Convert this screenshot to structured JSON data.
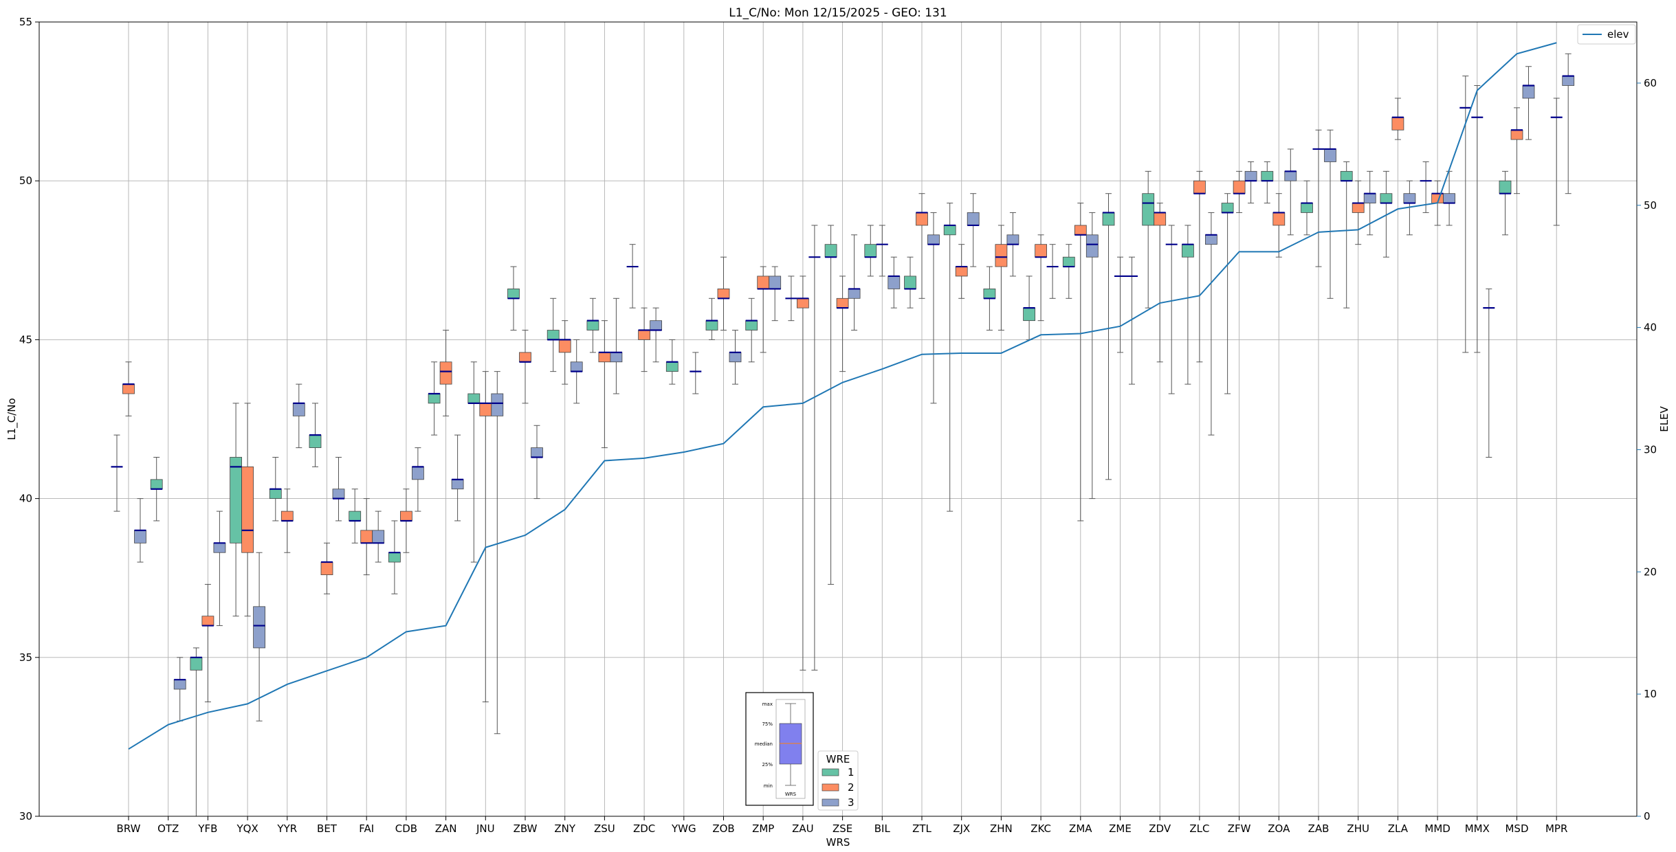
{
  "chart_data": {
    "type": "boxplot",
    "title": "L1_C/No: Mon 12/15/2025 - GEO: 131",
    "xlabel": "WRS",
    "ylabel": "L1_C/No",
    "y2label": "ELEV",
    "ylim": [
      30,
      55
    ],
    "y2lim": [
      0,
      65
    ],
    "yticks": [
      30,
      35,
      40,
      45,
      50,
      55
    ],
    "y2ticks": [
      0,
      10,
      20,
      30,
      40,
      50,
      60
    ],
    "grid": true,
    "colors": {
      "1": "#66c2a5",
      "2": "#fc8d62",
      "3": "#8da0cb",
      "elev": "#1f77b4",
      "median": "#00008b",
      "key_box": "#8080ee",
      "key_median": "#ff7f0e"
    },
    "categories": [
      "BRW",
      "OTZ",
      "YFB",
      "YQX",
      "YYR",
      "BET",
      "FAI",
      "CDB",
      "ZAN",
      "JNU",
      "ZBW",
      "ZNY",
      "ZSU",
      "ZDC",
      "YWG",
      "ZOB",
      "ZMP",
      "ZAU",
      "ZSE",
      "BIL",
      "ZTL",
      "ZJX",
      "ZHN",
      "ZKC",
      "ZMA",
      "ZME",
      "ZDV",
      "ZLC",
      "ZFW",
      "ZOA",
      "ZAB",
      "ZHU",
      "ZLA",
      "MMD",
      "MMX",
      "MSD",
      "MPR"
    ],
    "elev_series": {
      "name": "elev",
      "values": [
        5.5,
        7.5,
        8.5,
        9.2,
        10.8,
        11.9,
        13.0,
        15.1,
        15.6,
        22.0,
        23.0,
        25.1,
        29.1,
        29.3,
        29.8,
        30.5,
        33.5,
        33.8,
        35.5,
        36.6,
        37.8,
        37.9,
        37.9,
        39.4,
        39.5,
        40.1,
        42.0,
        42.6,
        46.2,
        46.2,
        47.8,
        48.0,
        49.7,
        50.2,
        59.4,
        62.4,
        63.3
      ]
    },
    "boxes": [
      {
        "station": "BRW",
        "wre": 1,
        "min": 39.6,
        "q1": 41.0,
        "median": 41.0,
        "q3": 41.0,
        "max": 42.0
      },
      {
        "station": "BRW",
        "wre": 2,
        "min": 42.6,
        "q1": 43.3,
        "median": 43.6,
        "q3": 43.6,
        "max": 44.3
      },
      {
        "station": "BRW",
        "wre": 3,
        "min": 38.0,
        "q1": 38.6,
        "median": 39.0,
        "q3": 39.0,
        "max": 40.0
      },
      {
        "station": "OTZ",
        "wre": 1,
        "min": 39.3,
        "q1": 40.3,
        "median": 40.3,
        "q3": 40.6,
        "max": 41.3
      },
      {
        "station": "OTZ",
        "wre": 3,
        "min": 33.0,
        "q1": 34.0,
        "median": 34.3,
        "q3": 34.3,
        "max": 35.0
      },
      {
        "station": "YFB",
        "wre": 1,
        "min": 30.0,
        "q1": 34.6,
        "median": 35.0,
        "q3": 35.0,
        "max": 35.3
      },
      {
        "station": "YFB",
        "wre": 2,
        "min": 33.6,
        "q1": 36.0,
        "median": 36.0,
        "q3": 36.3,
        "max": 37.3
      },
      {
        "station": "YFB",
        "wre": 3,
        "min": 36.0,
        "q1": 38.3,
        "median": 38.6,
        "q3": 38.6,
        "max": 39.6
      },
      {
        "station": "YQX",
        "wre": 1,
        "min": 36.3,
        "q1": 38.6,
        "median": 41.0,
        "q3": 41.3,
        "max": 43.0
      },
      {
        "station": "YQX",
        "wre": 2,
        "min": 36.3,
        "q1": 38.3,
        "median": 39.0,
        "q3": 41.0,
        "max": 43.0
      },
      {
        "station": "YQX",
        "wre": 3,
        "min": 33.0,
        "q1": 35.3,
        "median": 36.0,
        "q3": 36.6,
        "max": 38.3
      },
      {
        "station": "YYR",
        "wre": 1,
        "min": 39.3,
        "q1": 40.0,
        "median": 40.3,
        "q3": 40.3,
        "max": 41.3
      },
      {
        "station": "YYR",
        "wre": 2,
        "min": 38.3,
        "q1": 39.3,
        "median": 39.3,
        "q3": 39.6,
        "max": 40.3
      },
      {
        "station": "YYR",
        "wre": 3,
        "min": 41.6,
        "q1": 42.6,
        "median": 43.0,
        "q3": 43.0,
        "max": 43.6
      },
      {
        "station": "BET",
        "wre": 1,
        "min": 41.0,
        "q1": 41.6,
        "median": 42.0,
        "q3": 42.0,
        "max": 43.0
      },
      {
        "station": "BET",
        "wre": 2,
        "min": 37.0,
        "q1": 37.6,
        "median": 38.0,
        "q3": 38.0,
        "max": 38.6
      },
      {
        "station": "BET",
        "wre": 3,
        "min": 39.3,
        "q1": 40.0,
        "median": 40.0,
        "q3": 40.3,
        "max": 41.3
      },
      {
        "station": "FAI",
        "wre": 1,
        "min": 38.6,
        "q1": 39.3,
        "median": 39.3,
        "q3": 39.6,
        "max": 40.3
      },
      {
        "station": "FAI",
        "wre": 2,
        "min": 37.6,
        "q1": 38.6,
        "median": 38.6,
        "q3": 39.0,
        "max": 40.0
      },
      {
        "station": "FAI",
        "wre": 3,
        "min": 38.0,
        "q1": 38.6,
        "median": 38.6,
        "q3": 39.0,
        "max": 39.6
      },
      {
        "station": "CDB",
        "wre": 1,
        "min": 37.0,
        "q1": 38.0,
        "median": 38.3,
        "q3": 38.3,
        "max": 39.3
      },
      {
        "station": "CDB",
        "wre": 2,
        "min": 38.3,
        "q1": 39.3,
        "median": 39.3,
        "q3": 39.6,
        "max": 40.3
      },
      {
        "station": "CDB",
        "wre": 3,
        "min": 39.6,
        "q1": 40.6,
        "median": 41.0,
        "q3": 41.0,
        "max": 41.6
      },
      {
        "station": "ZAN",
        "wre": 1,
        "min": 42.0,
        "q1": 43.0,
        "median": 43.3,
        "q3": 43.3,
        "max": 44.3
      },
      {
        "station": "ZAN",
        "wre": 2,
        "min": 42.6,
        "q1": 43.6,
        "median": 44.0,
        "q3": 44.3,
        "max": 45.3
      },
      {
        "station": "ZAN",
        "wre": 3,
        "min": 39.3,
        "q1": 40.3,
        "median": 40.6,
        "q3": 40.6,
        "max": 42.0
      },
      {
        "station": "JNU",
        "wre": 1,
        "min": 38.0,
        "q1": 43.0,
        "median": 43.0,
        "q3": 43.3,
        "max": 44.3
      },
      {
        "station": "JNU",
        "wre": 2,
        "min": 33.6,
        "q1": 42.6,
        "median": 43.0,
        "q3": 43.0,
        "max": 44.0
      },
      {
        "station": "JNU",
        "wre": 3,
        "min": 32.6,
        "q1": 42.6,
        "median": 43.0,
        "q3": 43.3,
        "max": 44.0
      },
      {
        "station": "ZBW",
        "wre": 1,
        "min": 45.3,
        "q1": 46.3,
        "median": 46.3,
        "q3": 46.6,
        "max": 47.3
      },
      {
        "station": "ZBW",
        "wre": 2,
        "min": 43.0,
        "q1": 44.3,
        "median": 44.3,
        "q3": 44.6,
        "max": 45.3
      },
      {
        "station": "ZBW",
        "wre": 3,
        "min": 40.0,
        "q1": 41.3,
        "median": 41.3,
        "q3": 41.6,
        "max": 42.3
      },
      {
        "station": "ZNY",
        "wre": 1,
        "min": 44.0,
        "q1": 45.0,
        "median": 45.0,
        "q3": 45.3,
        "max": 46.3
      },
      {
        "station": "ZNY",
        "wre": 2,
        "min": 43.6,
        "q1": 44.6,
        "median": 45.0,
        "q3": 45.0,
        "max": 45.6
      },
      {
        "station": "ZNY",
        "wre": 3,
        "min": 43.0,
        "q1": 44.0,
        "median": 44.0,
        "q3": 44.3,
        "max": 45.0
      },
      {
        "station": "ZSU",
        "wre": 1,
        "min": 44.6,
        "q1": 45.3,
        "median": 45.6,
        "q3": 45.6,
        "max": 46.3
      },
      {
        "station": "ZSU",
        "wre": 2,
        "min": 41.6,
        "q1": 44.3,
        "median": 44.6,
        "q3": 44.6,
        "max": 45.6
      },
      {
        "station": "ZSU",
        "wre": 3,
        "min": 43.3,
        "q1": 44.3,
        "median": 44.6,
        "q3": 44.6,
        "max": 46.3
      },
      {
        "station": "ZDC",
        "wre": 1,
        "min": 46.0,
        "q1": 47.3,
        "median": 47.3,
        "q3": 47.3,
        "max": 48.0
      },
      {
        "station": "ZDC",
        "wre": 2,
        "min": 44.0,
        "q1": 45.0,
        "median": 45.3,
        "q3": 45.3,
        "max": 46.0
      },
      {
        "station": "ZDC",
        "wre": 3,
        "min": 44.3,
        "q1": 45.3,
        "median": 45.3,
        "q3": 45.6,
        "max": 46.0
      },
      {
        "station": "YWG",
        "wre": 1,
        "min": 43.6,
        "q1": 44.0,
        "median": 44.3,
        "q3": 44.3,
        "max": 45.0
      },
      {
        "station": "YWG",
        "wre": 3,
        "min": 43.3,
        "q1": 44.0,
        "median": 44.0,
        "q3": 44.0,
        "max": 44.6
      },
      {
        "station": "ZOB",
        "wre": 1,
        "min": 45.0,
        "q1": 45.3,
        "median": 45.6,
        "q3": 45.6,
        "max": 46.3
      },
      {
        "station": "ZOB",
        "wre": 2,
        "min": 45.3,
        "q1": 46.3,
        "median": 46.3,
        "q3": 46.6,
        "max": 47.6
      },
      {
        "station": "ZOB",
        "wre": 3,
        "min": 43.6,
        "q1": 44.3,
        "median": 44.6,
        "q3": 44.6,
        "max": 45.3
      },
      {
        "station": "ZMP",
        "wre": 1,
        "min": 44.3,
        "q1": 45.3,
        "median": 45.6,
        "q3": 45.6,
        "max": 46.3
      },
      {
        "station": "ZMP",
        "wre": 2,
        "min": 44.6,
        "q1": 46.6,
        "median": 46.6,
        "q3": 47.0,
        "max": 47.3
      },
      {
        "station": "ZMP",
        "wre": 3,
        "min": 45.6,
        "q1": 46.6,
        "median": 46.6,
        "q3": 47.0,
        "max": 47.3
      },
      {
        "station": "ZAU",
        "wre": 1,
        "min": 45.6,
        "q1": 46.3,
        "median": 46.3,
        "q3": 46.3,
        "max": 47.0
      },
      {
        "station": "ZAU",
        "wre": 2,
        "min": 34.6,
        "q1": 46.0,
        "median": 46.3,
        "q3": 46.3,
        "max": 47.0
      },
      {
        "station": "ZAU",
        "wre": 3,
        "min": 34.6,
        "q1": 47.6,
        "median": 47.6,
        "q3": 47.6,
        "max": 48.6
      },
      {
        "station": "ZSE",
        "wre": 1,
        "min": 37.3,
        "q1": 47.6,
        "median": 47.6,
        "q3": 48.0,
        "max": 48.6
      },
      {
        "station": "ZSE",
        "wre": 2,
        "min": 44.0,
        "q1": 46.0,
        "median": 46.0,
        "q3": 46.3,
        "max": 47.0
      },
      {
        "station": "ZSE",
        "wre": 3,
        "min": 45.3,
        "q1": 46.3,
        "median": 46.6,
        "q3": 46.6,
        "max": 48.3
      },
      {
        "station": "BIL",
        "wre": 1,
        "min": 47.0,
        "q1": 47.6,
        "median": 47.6,
        "q3": 48.0,
        "max": 48.6
      },
      {
        "station": "BIL",
        "wre": 2,
        "min": 47.0,
        "q1": 48.0,
        "median": 48.0,
        "q3": 48.0,
        "max": 48.6
      },
      {
        "station": "BIL",
        "wre": 3,
        "min": 46.0,
        "q1": 46.6,
        "median": 47.0,
        "q3": 47.0,
        "max": 47.6
      },
      {
        "station": "ZTL",
        "wre": 1,
        "min": 46.0,
        "q1": 46.6,
        "median": 46.6,
        "q3": 47.0,
        "max": 47.6
      },
      {
        "station": "ZTL",
        "wre": 2,
        "min": 46.3,
        "q1": 48.6,
        "median": 49.0,
        "q3": 49.0,
        "max": 49.6
      },
      {
        "station": "ZTL",
        "wre": 3,
        "min": 43.0,
        "q1": 48.0,
        "median": 48.0,
        "q3": 48.3,
        "max": 49.0
      },
      {
        "station": "ZJX",
        "wre": 1,
        "min": 39.6,
        "q1": 48.3,
        "median": 48.6,
        "q3": 48.6,
        "max": 49.3
      },
      {
        "station": "ZJX",
        "wre": 2,
        "min": 46.3,
        "q1": 47.0,
        "median": 47.3,
        "q3": 47.3,
        "max": 48.0
      },
      {
        "station": "ZJX",
        "wre": 3,
        "min": 47.3,
        "q1": 48.6,
        "median": 48.6,
        "q3": 49.0,
        "max": 49.6
      },
      {
        "station": "ZHN",
        "wre": 1,
        "min": 45.3,
        "q1": 46.3,
        "median": 46.3,
        "q3": 46.6,
        "max": 47.3
      },
      {
        "station": "ZHN",
        "wre": 2,
        "min": 45.3,
        "q1": 47.3,
        "median": 47.6,
        "q3": 48.0,
        "max": 48.6
      },
      {
        "station": "ZHN",
        "wre": 3,
        "min": 47.0,
        "q1": 48.0,
        "median": 48.0,
        "q3": 48.3,
        "max": 49.0
      },
      {
        "station": "ZKC",
        "wre": 1,
        "min": 45.0,
        "q1": 45.6,
        "median": 46.0,
        "q3": 46.0,
        "max": 47.0
      },
      {
        "station": "ZKC",
        "wre": 2,
        "min": 45.6,
        "q1": 47.6,
        "median": 47.6,
        "q3": 48.0,
        "max": 48.3
      },
      {
        "station": "ZKC",
        "wre": 3,
        "min": 46.3,
        "q1": 47.3,
        "median": 47.3,
        "q3": 47.3,
        "max": 48.0
      },
      {
        "station": "ZMA",
        "wre": 1,
        "min": 46.3,
        "q1": 47.3,
        "median": 47.3,
        "q3": 47.6,
        "max": 48.0
      },
      {
        "station": "ZMA",
        "wre": 2,
        "min": 39.3,
        "q1": 48.3,
        "median": 48.3,
        "q3": 48.6,
        "max": 49.3
      },
      {
        "station": "ZMA",
        "wre": 3,
        "min": 40.0,
        "q1": 47.6,
        "median": 48.0,
        "q3": 48.3,
        "max": 49.0
      },
      {
        "station": "ZME",
        "wre": 1,
        "min": 40.6,
        "q1": 48.6,
        "median": 49.0,
        "q3": 49.0,
        "max": 49.6
      },
      {
        "station": "ZME",
        "wre": 2,
        "min": 44.6,
        "q1": 47.0,
        "median": 47.0,
        "q3": 47.0,
        "max": 47.6
      },
      {
        "station": "ZME",
        "wre": 3,
        "min": 43.6,
        "q1": 47.0,
        "median": 47.0,
        "q3": 47.0,
        "max": 47.6
      },
      {
        "station": "ZDV",
        "wre": 1,
        "min": 46.0,
        "q1": 48.6,
        "median": 49.3,
        "q3": 49.6,
        "max": 50.3
      },
      {
        "station": "ZDV",
        "wre": 2,
        "min": 44.3,
        "q1": 48.6,
        "median": 49.0,
        "q3": 49.0,
        "max": 49.3
      },
      {
        "station": "ZDV",
        "wre": 3,
        "min": 43.3,
        "q1": 48.0,
        "median": 48.0,
        "q3": 48.0,
        "max": 48.6
      },
      {
        "station": "ZLC",
        "wre": 1,
        "min": 43.6,
        "q1": 47.6,
        "median": 48.0,
        "q3": 48.0,
        "max": 48.6
      },
      {
        "station": "ZLC",
        "wre": 2,
        "min": 44.3,
        "q1": 49.6,
        "median": 49.6,
        "q3": 50.0,
        "max": 50.3
      },
      {
        "station": "ZLC",
        "wre": 3,
        "min": 42.0,
        "q1": 48.0,
        "median": 48.3,
        "q3": 48.3,
        "max": 49.0
      },
      {
        "station": "ZFW",
        "wre": 1,
        "min": 43.3,
        "q1": 49.0,
        "median": 49.0,
        "q3": 49.3,
        "max": 49.6
      },
      {
        "station": "ZFW",
        "wre": 2,
        "min": 49.0,
        "q1": 49.6,
        "median": 49.6,
        "q3": 50.0,
        "max": 50.3
      },
      {
        "station": "ZFW",
        "wre": 3,
        "min": 49.3,
        "q1": 50.0,
        "median": 50.0,
        "q3": 50.3,
        "max": 50.6
      },
      {
        "station": "ZOA",
        "wre": 1,
        "min": 49.3,
        "q1": 50.0,
        "median": 50.0,
        "q3": 50.3,
        "max": 50.6
      },
      {
        "station": "ZOA",
        "wre": 2,
        "min": 47.6,
        "q1": 48.6,
        "median": 49.0,
        "q3": 49.0,
        "max": 49.6
      },
      {
        "station": "ZOA",
        "wre": 3,
        "min": 48.3,
        "q1": 50.0,
        "median": 50.3,
        "q3": 50.3,
        "max": 51.0
      },
      {
        "station": "ZAB",
        "wre": 1,
        "min": 48.3,
        "q1": 49.0,
        "median": 49.3,
        "q3": 49.3,
        "max": 50.0
      },
      {
        "station": "ZAB",
        "wre": 2,
        "min": 47.3,
        "q1": 51.0,
        "median": 51.0,
        "q3": 51.0,
        "max": 51.6
      },
      {
        "station": "ZAB",
        "wre": 3,
        "min": 46.3,
        "q1": 50.6,
        "median": 51.0,
        "q3": 51.0,
        "max": 51.6
      },
      {
        "station": "ZHU",
        "wre": 1,
        "min": 46.0,
        "q1": 50.0,
        "median": 50.0,
        "q3": 50.3,
        "max": 50.6
      },
      {
        "station": "ZHU",
        "wre": 2,
        "min": 48.0,
        "q1": 49.0,
        "median": 49.3,
        "q3": 49.3,
        "max": 50.0
      },
      {
        "station": "ZHU",
        "wre": 3,
        "min": 48.3,
        "q1": 49.3,
        "median": 49.6,
        "q3": 49.6,
        "max": 50.3
      },
      {
        "station": "ZLA",
        "wre": 1,
        "min": 47.6,
        "q1": 49.3,
        "median": 49.3,
        "q3": 49.6,
        "max": 50.3
      },
      {
        "station": "ZLA",
        "wre": 2,
        "min": 51.3,
        "q1": 51.6,
        "median": 52.0,
        "q3": 52.0,
        "max": 52.6
      },
      {
        "station": "ZLA",
        "wre": 3,
        "min": 48.3,
        "q1": 49.3,
        "median": 49.3,
        "q3": 49.6,
        "max": 50.0
      },
      {
        "station": "MMD",
        "wre": 1,
        "min": 49.0,
        "q1": 50.0,
        "median": 50.0,
        "q3": 50.0,
        "max": 50.6
      },
      {
        "station": "MMD",
        "wre": 2,
        "min": 48.6,
        "q1": 49.3,
        "median": 49.6,
        "q3": 49.6,
        "max": 50.0
      },
      {
        "station": "MMD",
        "wre": 3,
        "min": 48.6,
        "q1": 49.3,
        "median": 49.3,
        "q3": 49.6,
        "max": 50.3
      },
      {
        "station": "MMX",
        "wre": 1,
        "min": 44.6,
        "q1": 52.3,
        "median": 52.3,
        "q3": 52.3,
        "max": 53.3
      },
      {
        "station": "MMX",
        "wre": 2,
        "min": 44.6,
        "q1": 52.0,
        "median": 52.0,
        "q3": 52.0,
        "max": 53.0
      },
      {
        "station": "MMX",
        "wre": 3,
        "min": 41.3,
        "q1": 46.0,
        "median": 46.0,
        "q3": 46.0,
        "max": 46.6
      },
      {
        "station": "MSD",
        "wre": 1,
        "min": 48.3,
        "q1": 49.6,
        "median": 49.6,
        "q3": 50.0,
        "max": 50.3
      },
      {
        "station": "MSD",
        "wre": 2,
        "min": 49.6,
        "q1": 51.3,
        "median": 51.6,
        "q3": 51.6,
        "max": 52.3
      },
      {
        "station": "MSD",
        "wre": 3,
        "min": 51.3,
        "q1": 52.6,
        "median": 53.0,
        "q3": 53.0,
        "max": 53.6
      },
      {
        "station": "MPR",
        "wre": 2,
        "min": 48.6,
        "q1": 52.0,
        "median": 52.0,
        "q3": 52.0,
        "max": 52.6
      },
      {
        "station": "MPR",
        "wre": 3,
        "min": 49.6,
        "q1": 53.0,
        "median": 53.3,
        "q3": 53.3,
        "max": 54.0
      }
    ],
    "legend_elev_label": "elev",
    "legend_wre_title": "WRE",
    "legend_wre_labels": [
      "1",
      "2",
      "3"
    ],
    "box_key": {
      "labels": [
        "max",
        "75%",
        "median",
        "25%",
        "min"
      ],
      "caption": "WRS"
    }
  }
}
